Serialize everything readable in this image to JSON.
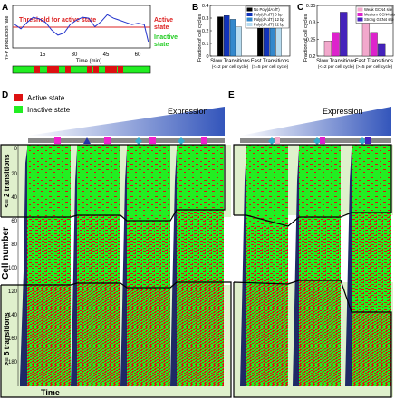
{
  "panels": {
    "A": {
      "letter": "A",
      "ylabel": "YFP production rate",
      "xlabel": "Time (min)",
      "threshold_label": "Threshold for active state",
      "active_label_1": "Active",
      "active_label_2": "state",
      "inactive_label_1": "Inactive",
      "inactive_label_2": "state",
      "xticks": [
        "15",
        "30",
        "45",
        "60"
      ],
      "colors": {
        "trace": "#2233cc",
        "threshold": "#dd2222",
        "active": "#dd1111",
        "inactive": "#22ee22"
      }
    },
    "B": {
      "letter": "B"
    },
    "C": {
      "letter": "C"
    },
    "D": {
      "letter": "D",
      "legend_active": "Active state",
      "legend_inactive": "Inactive state",
      "expression_label": "Expression",
      "ylabel": "Cell number",
      "yticks": [
        "0",
        "20",
        "40",
        "60",
        "80",
        "100",
        "120",
        "140",
        "160",
        "180"
      ],
      "group_top": "<= 2 transitions",
      "group_bottom": ">= 5 transitions",
      "xlabel": "Time"
    },
    "E": {
      "letter": "E",
      "expression_label": "Expression"
    }
  },
  "chart_data": [
    {
      "type": "bar",
      "panel": "B",
      "ylabel": "Fraction of cell cycles",
      "categories": [
        "Slow Transitions\n(<=2 per cell cycle)",
        "Fast Transitions\n(>=5 per cell cycle)"
      ],
      "ylim": [
        0,
        0.4
      ],
      "yticks": [
        "0",
        "0.1",
        "0.2",
        "0.3",
        "0.4"
      ],
      "legend_position": "top-right",
      "series": [
        {
          "name": "No Poly(dA:dT)",
          "color": "#000000",
          "values": [
            0.31,
            0.25
          ]
        },
        {
          "name": "Poly(dA:dT) 6 bp",
          "color": "#1133bb",
          "values": [
            0.32,
            0.25
          ]
        },
        {
          "name": "Poly(dA:dT) 12 bp",
          "color": "#3388cc",
          "values": [
            0.29,
            0.28
          ]
        },
        {
          "name": "Poly(dA:dT) 22 bp",
          "color": "#b8dcf0",
          "values": [
            0.23,
            0.31
          ]
        }
      ]
    },
    {
      "type": "bar",
      "panel": "C",
      "ylabel": "Fraction of cell cycles",
      "categories": [
        "Slow Transitions\n(<=2 per cell cycle)",
        "Fast Transitions\n(>=5 per cell cycle)"
      ],
      "ylim": [
        0.2,
        0.35
      ],
      "yticks": [
        "0.2",
        "0.25",
        "0.3",
        "0.35"
      ],
      "legend_position": "top-right",
      "series": [
        {
          "name": "Weak GCN4 site",
          "color": "#f2a8cc",
          "values": [
            0.245,
            0.3
          ]
        },
        {
          "name": "Medium GCN4 site",
          "color": "#dd22cc",
          "values": [
            0.27,
            0.27
          ]
        },
        {
          "name": "Strong GCN4 site",
          "color": "#4422bb",
          "values": [
            0.33,
            0.235
          ]
        }
      ]
    },
    {
      "type": "line",
      "panel": "A",
      "xlabel": "Time (min)",
      "ylabel": "YFP production rate",
      "xlim": [
        0,
        67
      ],
      "x": [
        1,
        4,
        7,
        10,
        13,
        16,
        19,
        22,
        25,
        28,
        31,
        34,
        37,
        40,
        43,
        46,
        49,
        52,
        55,
        58,
        61,
        64,
        66
      ],
      "y": [
        0.55,
        0.45,
        0.6,
        0.72,
        0.68,
        0.6,
        0.42,
        0.3,
        0.35,
        0.55,
        0.65,
        0.72,
        0.7,
        0.5,
        0.62,
        0.78,
        0.7,
        0.65,
        0.6,
        0.55,
        0.58,
        0.55,
        0.15
      ],
      "threshold": 0.5
    }
  ]
}
